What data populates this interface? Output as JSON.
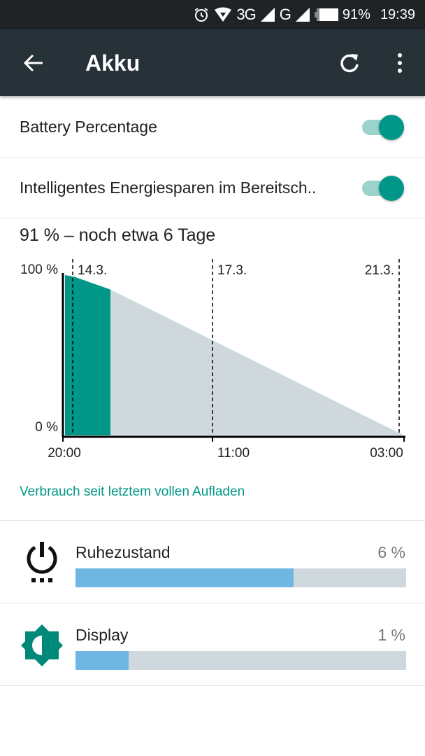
{
  "status_bar": {
    "network_3g": "3G",
    "network_g": "G",
    "battery_percent": "91%",
    "time": "19:39",
    "icons": [
      "alarm-icon",
      "wifi-icon",
      "signal-icon",
      "signal-icon",
      "battery-icon"
    ]
  },
  "toolbar": {
    "title": "Akku",
    "icons": [
      "back-arrow-icon",
      "refresh-icon",
      "more-vert-icon"
    ]
  },
  "settings": [
    {
      "label": "Battery Percentage",
      "enabled": true
    },
    {
      "label": "Intelligentes Energiesparen im Bereitsch..",
      "enabled": true
    }
  ],
  "summary": "91 % – noch etwa 6 Tage",
  "chart_data": {
    "type": "area",
    "ylim": [
      0,
      100
    ],
    "y_tick_labels": [
      "100 %",
      "0 %"
    ],
    "x_tick_labels": [
      "20:00",
      "11:00",
      "03:00"
    ],
    "date_markers": [
      "14.3.",
      "17.3.",
      "21.3."
    ],
    "series": [
      {
        "name": "",
        "kind": "history",
        "values": [
          100,
          99,
          97,
          95,
          93,
          91
        ]
      },
      {
        "name": "",
        "kind": "prediction",
        "values": [
          91,
          0
        ]
      }
    ],
    "colors": {
      "history": "#009688",
      "prediction": "#cfd8dc",
      "axis": "#000000"
    }
  },
  "section_title": "Verbrauch seit letztem vollen Aufladen",
  "usage": [
    {
      "name": "Ruhezustand",
      "percent": "6 %",
      "bar_fraction": 0.66,
      "icon": "power-standby-icon"
    },
    {
      "name": "Display",
      "percent": "1 %",
      "bar_fraction": 0.16,
      "icon": "brightness-icon"
    }
  ],
  "colors": {
    "accent": "#009688",
    "toolbar": "#263238",
    "status_bar": "#1f2326",
    "bar_fill": "#6fb6e2",
    "bar_track": "#cfd8dc"
  }
}
